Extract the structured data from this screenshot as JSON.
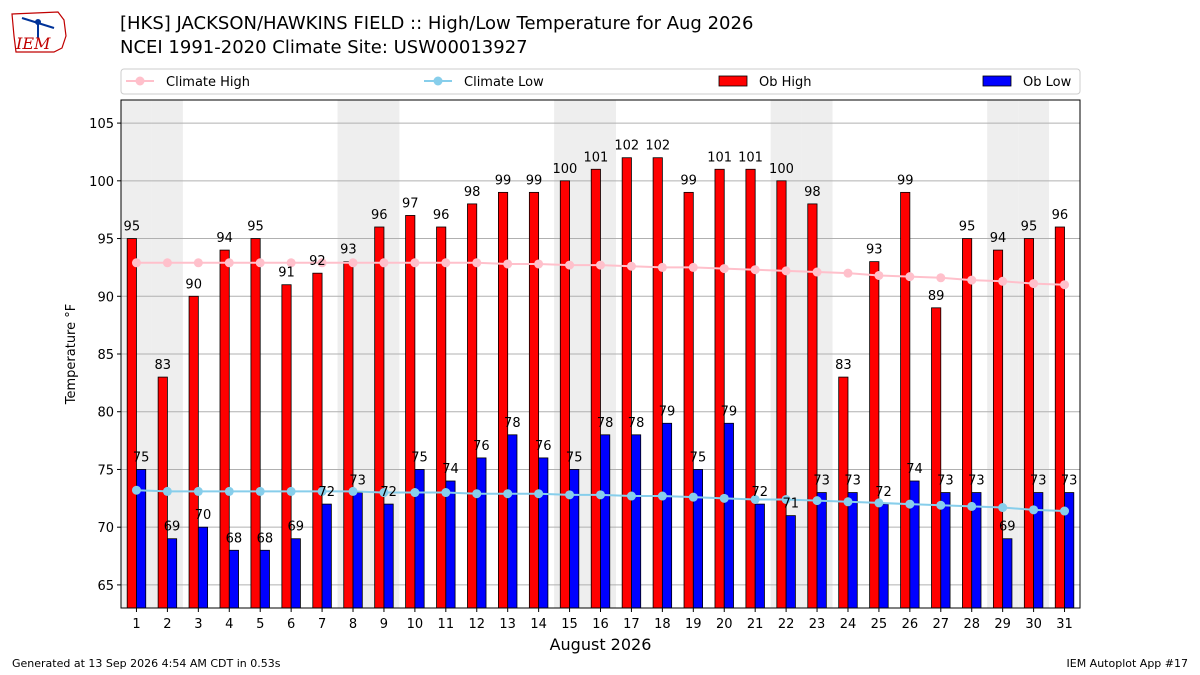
{
  "header": {
    "title": "[HKS] JACKSON/HAWKINS FIELD :: High/Low Temperature for Aug 2026",
    "subtitle": "NCEI 1991-2020 Climate Site: USW00013927",
    "logo_text": "IEM"
  },
  "footer": {
    "generated": "Generated at 13 Sep 2026 4:54 AM CDT in 0.53s",
    "app": "IEM Autoplot App #17"
  },
  "colors": {
    "ob_high": "#ff0000",
    "ob_low": "#0000ff",
    "climate_high": "#ffc0cb",
    "climate_low": "#87ceeb",
    "weekend_band": "#eeeeee"
  },
  "chart_data": {
    "type": "bar",
    "xlabel": "August 2026",
    "ylabel": "Temperature °F",
    "ylim": [
      63,
      107
    ],
    "yticks": [
      65,
      70,
      75,
      80,
      85,
      90,
      95,
      100,
      105
    ],
    "grid": true,
    "legend_placement": "top",
    "categories": [
      "1",
      "2",
      "3",
      "4",
      "5",
      "6",
      "7",
      "8",
      "9",
      "10",
      "11",
      "12",
      "13",
      "14",
      "15",
      "16",
      "17",
      "18",
      "19",
      "20",
      "21",
      "22",
      "23",
      "24",
      "25",
      "26",
      "27",
      "28",
      "29",
      "30",
      "31"
    ],
    "shaded_days": [
      1,
      2,
      8,
      9,
      15,
      16,
      22,
      23,
      29,
      30
    ],
    "series": [
      {
        "name": "Climate High",
        "kind": "line",
        "values": [
          92.9,
          92.9,
          92.9,
          92.9,
          92.9,
          92.9,
          92.9,
          92.9,
          92.9,
          92.9,
          92.9,
          92.9,
          92.8,
          92.8,
          92.7,
          92.7,
          92.6,
          92.5,
          92.5,
          92.4,
          92.3,
          92.2,
          92.1,
          92.0,
          91.8,
          91.7,
          91.6,
          91.4,
          91.3,
          91.1,
          91.0
        ]
      },
      {
        "name": "Climate Low",
        "kind": "line",
        "values": [
          73.2,
          73.1,
          73.1,
          73.1,
          73.1,
          73.1,
          73.1,
          73.1,
          73.0,
          73.0,
          73.0,
          72.9,
          72.9,
          72.9,
          72.8,
          72.8,
          72.7,
          72.7,
          72.6,
          72.5,
          72.4,
          72.4,
          72.3,
          72.2,
          72.1,
          72.0,
          71.9,
          71.8,
          71.7,
          71.5,
          71.4
        ]
      },
      {
        "name": "Ob High",
        "kind": "bar",
        "values": [
          95,
          83,
          90,
          94,
          95,
          91,
          92,
          93,
          96,
          97,
          96,
          98,
          99,
          99,
          100,
          101,
          102,
          102,
          99,
          101,
          101,
          100,
          98,
          83,
          93,
          99,
          89,
          95,
          94,
          95,
          96
        ]
      },
      {
        "name": "Ob Low",
        "kind": "bar",
        "values": [
          75,
          69,
          70,
          68,
          68,
          69,
          72,
          73,
          72,
          75,
          74,
          76,
          78,
          76,
          75,
          78,
          78,
          79,
          75,
          79,
          72,
          71,
          73,
          73,
          72,
          74,
          73,
          73,
          69,
          73,
          73
        ]
      }
    ]
  }
}
